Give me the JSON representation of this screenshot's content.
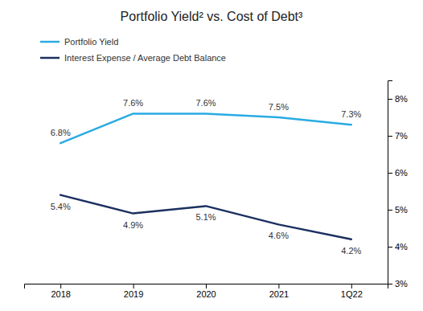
{
  "chart_data": {
    "type": "line",
    "title": "Portfolio Yield² vs. Cost of Debt³",
    "categories": [
      "2018",
      "2019",
      "2020",
      "2021",
      "1Q22"
    ],
    "series": [
      {
        "name": "Portfolio Yield",
        "color": "#29ABE2",
        "values": [
          6.8,
          7.6,
          7.6,
          7.5,
          7.3
        ],
        "value_labels": [
          "6.8%",
          "7.6%",
          "7.6%",
          "7.5%",
          "7.3%"
        ]
      },
      {
        "name": "Interest Expense / Average Debt Balance",
        "color": "#1B3060",
        "values": [
          5.4,
          4.9,
          5.1,
          4.6,
          4.2
        ],
        "value_labels": [
          "5.4%",
          "4.9%",
          "5.1%",
          "4.6%",
          "4.2%"
        ]
      }
    ],
    "ylim": [
      3.0,
      8.5
    ],
    "yticks": [
      {
        "value": 3,
        "label": "3%"
      },
      {
        "value": 4,
        "label": "4%"
      },
      {
        "value": 5,
        "label": "5%"
      },
      {
        "value": 6,
        "label": "6%"
      },
      {
        "value": 7,
        "label": "7%"
      },
      {
        "value": 8,
        "label": "8%"
      }
    ],
    "grid": false,
    "data_labels": true,
    "legend": "upper left"
  }
}
